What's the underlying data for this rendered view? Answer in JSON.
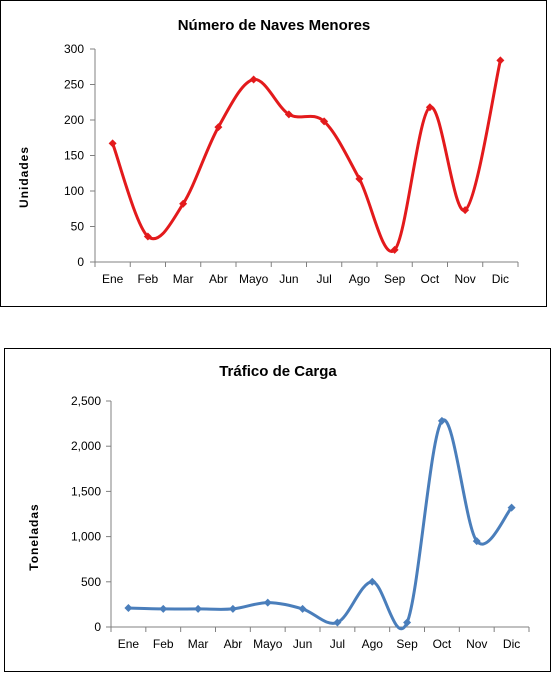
{
  "chart_data": [
    {
      "type": "line",
      "title": "Número de Naves Menores",
      "ylabel": "Unidades",
      "xlabel": "",
      "categories": [
        "Ene",
        "Feb",
        "Mar",
        "Abr",
        "Mayo",
        "Jun",
        "Jul",
        "Ago",
        "Sep",
        "Oct",
        "Nov",
        "Dic"
      ],
      "series": [
        {
          "values": [
            167,
            36,
            82,
            190,
            257,
            208,
            198,
            117,
            17,
            218,
            73,
            284
          ],
          "color": "#e31a1c",
          "marker": "diamond",
          "smooth": true
        }
      ],
      "ylim": [
        0,
        300
      ],
      "yticks": [
        0,
        50,
        100,
        150,
        200,
        250,
        300
      ],
      "ytick_labels": [
        "0",
        "50",
        "100",
        "150",
        "200",
        "250",
        "300"
      ],
      "grid": false,
      "legend": "none"
    },
    {
      "type": "line",
      "title": "Tráfico de Carga",
      "ylabel": "Toneladas",
      "xlabel": "",
      "categories": [
        "Ene",
        "Feb",
        "Mar",
        "Abr",
        "Mayo",
        "Jun",
        "Jul",
        "Ago",
        "Sep",
        "Oct",
        "Nov",
        "Dic"
      ],
      "series": [
        {
          "values": [
            210,
            200,
            200,
            200,
            270,
            200,
            50,
            500,
            50,
            2280,
            950,
            1320
          ],
          "color": "#4a7ebb",
          "marker": "diamond",
          "smooth": true
        }
      ],
      "ylim": [
        0,
        2500
      ],
      "yticks": [
        0,
        500,
        1000,
        1500,
        2000,
        2500
      ],
      "ytick_labels": [
        "0",
        "500",
        "1,000",
        "1,500",
        "2,000",
        "2,500"
      ],
      "grid": false,
      "legend": "none"
    }
  ]
}
